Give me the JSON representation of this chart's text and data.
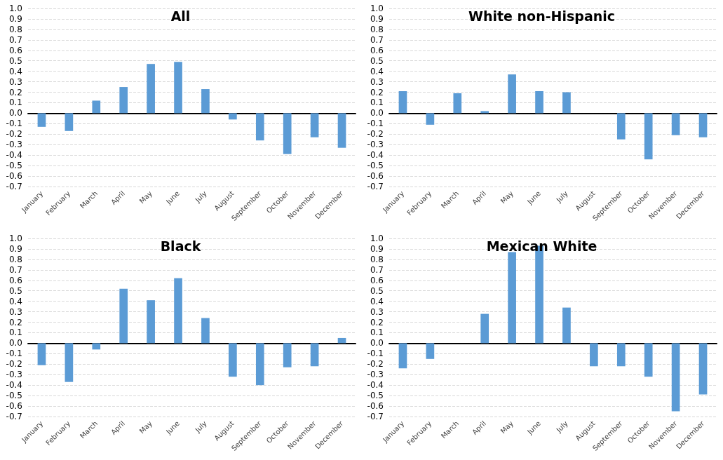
{
  "chart_data": [
    {
      "type": "bar",
      "title": "All",
      "categories": [
        "January",
        "February",
        "March",
        "April",
        "May",
        "June",
        "July",
        "August",
        "September",
        "October",
        "November",
        "December"
      ],
      "values": [
        -0.13,
        -0.17,
        0.12,
        0.25,
        0.47,
        0.49,
        0.23,
        -0.06,
        -0.26,
        -0.39,
        -0.23,
        -0.33
      ],
      "color": "#5b9bd5",
      "ylim": [
        -0.7,
        1.0
      ],
      "yticks": [
        {
          "value": -0.7,
          "label": "-0.7"
        },
        {
          "value": -0.6,
          "label": "-0.6"
        },
        {
          "value": -0.5,
          "label": "-0.5"
        },
        {
          "value": -0.4,
          "label": "-0.4"
        },
        {
          "value": -0.3,
          "label": "-0.3"
        },
        {
          "value": -0.2,
          "label": "-0.2"
        },
        {
          "value": -0.1,
          "label": "-0.1"
        },
        {
          "value": 0,
          "label": "0.0"
        },
        {
          "value": 0.1,
          "label": "0.1"
        },
        {
          "value": 0.2,
          "label": "0.2"
        },
        {
          "value": 0.3,
          "label": "0.3"
        },
        {
          "value": 0.4,
          "label": "0.4"
        },
        {
          "value": 0.5,
          "label": "0.5"
        },
        {
          "value": 0.6,
          "label": "0.6"
        },
        {
          "value": 0.7,
          "label": "0.7"
        },
        {
          "value": 0.8,
          "label": "0.8"
        },
        {
          "value": 0.9,
          "label": "0.9"
        },
        {
          "value": 1.0,
          "label": "1.0"
        }
      ],
      "grid": "y"
    },
    {
      "type": "bar",
      "title": "White non-Hispanic",
      "categories": [
        "January",
        "February",
        "March",
        "April",
        "May",
        "June",
        "July",
        "August",
        "September",
        "October",
        "November",
        "December"
      ],
      "values": [
        0.21,
        -0.11,
        0.19,
        0.02,
        0.37,
        0.21,
        0.2,
        0,
        -0.25,
        -0.44,
        -0.21,
        -0.23
      ],
      "color": "#5b9bd5",
      "ylim": [
        -0.7,
        1.0
      ],
      "yticks": [
        {
          "value": -0.7,
          "label": "-0.7"
        },
        {
          "value": -0.6,
          "label": "-0.6"
        },
        {
          "value": -0.5,
          "label": "-0.5"
        },
        {
          "value": -0.4,
          "label": "-0.4"
        },
        {
          "value": -0.3,
          "label": "-0.3"
        },
        {
          "value": -0.2,
          "label": "-0.2"
        },
        {
          "value": -0.1,
          "label": "-0.1"
        },
        {
          "value": 0,
          "label": "0.0"
        },
        {
          "value": 0.1,
          "label": "0.1"
        },
        {
          "value": 0.2,
          "label": "0.2"
        },
        {
          "value": 0.3,
          "label": "0.3"
        },
        {
          "value": 0.4,
          "label": "0.4"
        },
        {
          "value": 0.5,
          "label": "0.5"
        },
        {
          "value": 0.6,
          "label": "0.6"
        },
        {
          "value": 0.7,
          "label": "0.7"
        },
        {
          "value": 0.8,
          "label": "0.8"
        },
        {
          "value": 0.9,
          "label": "0.9"
        },
        {
          "value": 1.0,
          "label": "1.0"
        }
      ],
      "grid": "y"
    },
    {
      "type": "bar",
      "title": "Black",
      "categories": [
        "January",
        "February",
        "March",
        "April",
        "May",
        "June",
        "July",
        "August",
        "September",
        "October",
        "November",
        "December"
      ],
      "values": [
        -0.21,
        -0.37,
        -0.06,
        0.52,
        0.41,
        0.62,
        0.24,
        -0.32,
        -0.4,
        -0.23,
        -0.22,
        0.05
      ],
      "color": "#5b9bd5",
      "ylim": [
        -0.7,
        1.0
      ],
      "yticks": [
        {
          "value": -0.7,
          "label": "-0.7"
        },
        {
          "value": -0.6,
          "label": "-0.6"
        },
        {
          "value": -0.5,
          "label": "-0.5"
        },
        {
          "value": -0.4,
          "label": "-0.4"
        },
        {
          "value": -0.3,
          "label": "-0.3"
        },
        {
          "value": -0.2,
          "label": "-0.2"
        },
        {
          "value": -0.1,
          "label": "-0.1"
        },
        {
          "value": 0,
          "label": "0.0"
        },
        {
          "value": 0.1,
          "label": "0.1"
        },
        {
          "value": 0.2,
          "label": "0.2"
        },
        {
          "value": 0.3,
          "label": "0.3"
        },
        {
          "value": 0.4,
          "label": "0.4"
        },
        {
          "value": 0.5,
          "label": "0.5"
        },
        {
          "value": 0.6,
          "label": "0.6"
        },
        {
          "value": 0.7,
          "label": "0.7"
        },
        {
          "value": 0.8,
          "label": "0.8"
        },
        {
          "value": 0.9,
          "label": "0.9"
        },
        {
          "value": 1.0,
          "label": "1.0"
        }
      ],
      "grid": "y"
    },
    {
      "type": "bar",
      "title": "Mexican White",
      "categories": [
        "January",
        "February",
        "March",
        "April",
        "May",
        "June",
        "July",
        "August",
        "September",
        "October",
        "November",
        "December"
      ],
      "values": [
        -0.24,
        -0.15,
        0,
        0.28,
        0.87,
        0.93,
        0.34,
        -0.22,
        -0.22,
        -0.32,
        -0.65,
        -0.49
      ],
      "color": "#5b9bd5",
      "ylim": [
        -0.7,
        1.0
      ],
      "yticks": [
        {
          "value": -0.7,
          "label": "-0.7"
        },
        {
          "value": -0.6,
          "label": "-0.6"
        },
        {
          "value": -0.5,
          "label": "-0.5"
        },
        {
          "value": -0.4,
          "label": "-0.4"
        },
        {
          "value": -0.3,
          "label": "-0.3"
        },
        {
          "value": -0.2,
          "label": "-0.2"
        },
        {
          "value": -0.1,
          "label": "-0.1"
        },
        {
          "value": 0,
          "label": "0.0"
        },
        {
          "value": 0.1,
          "label": "0.1"
        },
        {
          "value": 0.2,
          "label": "0.2"
        },
        {
          "value": 0.3,
          "label": "0.3"
        },
        {
          "value": 0.4,
          "label": "0.4"
        },
        {
          "value": 0.5,
          "label": "0.5"
        },
        {
          "value": 0.6,
          "label": "0.6"
        },
        {
          "value": 0.7,
          "label": "0.7"
        },
        {
          "value": 0.8,
          "label": "0.8"
        },
        {
          "value": 0.9,
          "label": "0.9"
        },
        {
          "value": 1.0,
          "label": "1.0"
        }
      ],
      "grid": "y"
    }
  ]
}
